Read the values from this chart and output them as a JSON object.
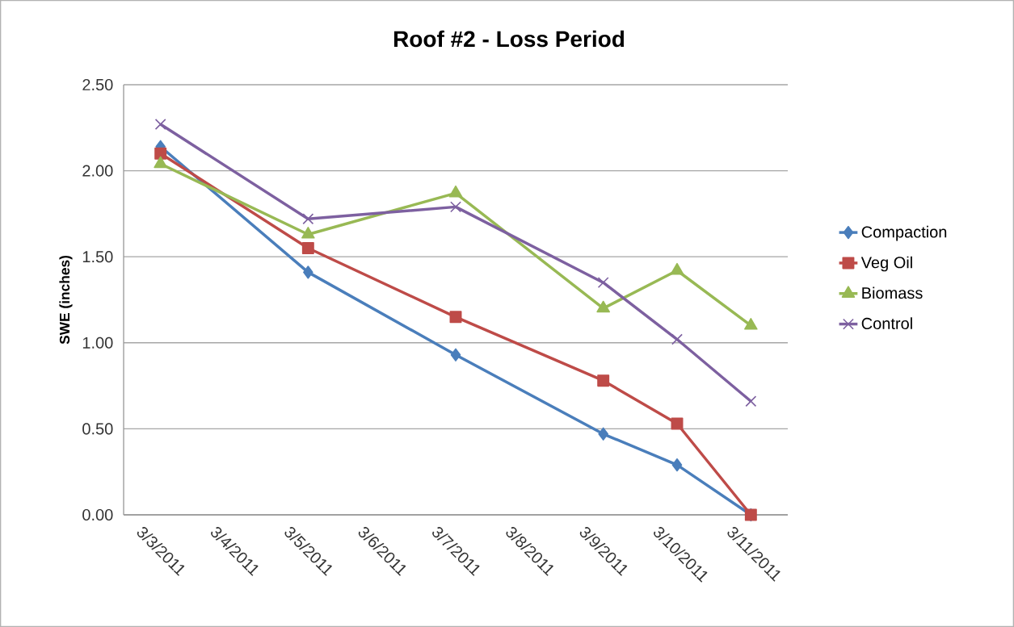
{
  "chart_data": {
    "type": "line",
    "title": "Roof #2 - Loss Period",
    "ylabel": "SWE (inches)",
    "x": [
      "2011-03-03",
      "2011-03-05",
      "2011-03-07",
      "2011-03-09",
      "2011-03-10",
      "2011-03-11"
    ],
    "series": [
      {
        "name": "Compaction",
        "color": "#4a7ebb",
        "marker": "diamond",
        "values": [
          2.14,
          1.41,
          0.93,
          0.47,
          0.29,
          0.0
        ]
      },
      {
        "name": "Veg Oil",
        "color": "#be4b48",
        "marker": "square",
        "values": [
          2.1,
          1.55,
          1.15,
          0.78,
          0.53,
          0.0
        ]
      },
      {
        "name": "Biomass",
        "color": "#98b954",
        "marker": "triangle",
        "values": [
          2.04,
          1.63,
          1.87,
          1.2,
          1.42,
          1.1
        ]
      },
      {
        "name": "Control",
        "color": "#7d60a0",
        "marker": "cross",
        "values": [
          2.27,
          1.72,
          1.79,
          1.35,
          1.02,
          0.66
        ]
      }
    ],
    "xlim": [
      "2011-03-02T12:00",
      "2011-03-11T12:00"
    ],
    "xticks": [
      {
        "value": "2011-03-03",
        "label": "3/3/2011"
      },
      {
        "value": "2011-03-04",
        "label": "3/4/2011"
      },
      {
        "value": "2011-03-05",
        "label": "3/5/2011"
      },
      {
        "value": "2011-03-06",
        "label": "3/6/2011"
      },
      {
        "value": "2011-03-07",
        "label": "3/7/2011"
      },
      {
        "value": "2011-03-08",
        "label": "3/8/2011"
      },
      {
        "value": "2011-03-09",
        "label": "3/9/2011"
      },
      {
        "value": "2011-03-10",
        "label": "3/10/2011"
      },
      {
        "value": "2011-03-11",
        "label": "3/11/2011"
      }
    ],
    "ylim": [
      0,
      2.5
    ],
    "yticks": [
      {
        "value": 0,
        "label": "0.00"
      },
      {
        "value": 0.5,
        "label": "0.50"
      },
      {
        "value": 1,
        "label": "1.00"
      },
      {
        "value": 1.5,
        "label": "1.50"
      },
      {
        "value": 2,
        "label": "2.00"
      },
      {
        "value": 2.5,
        "label": "2.50"
      }
    ],
    "grid": "y",
    "legend": "right",
    "line_style": "solid"
  }
}
